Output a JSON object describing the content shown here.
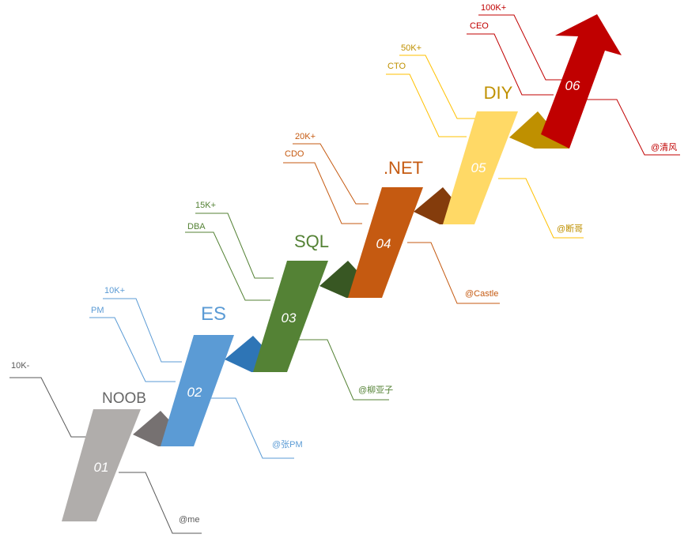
{
  "steps": [
    {
      "num": "01",
      "title": "NOOB",
      "salary": "10K-",
      "role": "",
      "author": "@me",
      "color": "#666666",
      "face": "#b0adab",
      "side": "#767171"
    },
    {
      "num": "02",
      "title": "ES",
      "salary": "10K+",
      "role": "PM",
      "author": "@张PM",
      "color": "#5b9bd5",
      "face": "#5b9bd5",
      "side": "#2e75b6"
    },
    {
      "num": "03",
      "title": "SQL",
      "salary": "15K+",
      "role": "DBA",
      "author": "@柳亚子",
      "color": "#548235",
      "face": "#548235",
      "side": "#385723"
    },
    {
      "num": "04",
      "title": ".NET",
      "salary": "20K+",
      "role": "CDO",
      "author": "@Castle",
      "color": "#c55a11",
      "face": "#c55a11",
      "side": "#843c0c"
    },
    {
      "num": "05",
      "title": "DIY",
      "salary": "50K+",
      "role": "CTO",
      "author": "@断哥",
      "color": "#bf9000",
      "face": "#ffd966",
      "side": "#bf9000"
    },
    {
      "num": "06",
      "title": "",
      "salary": "100K+",
      "role": "CEO",
      "author": "@清风",
      "color": "#c00000",
      "face": "#c00000",
      "side": "#c00000"
    }
  ]
}
